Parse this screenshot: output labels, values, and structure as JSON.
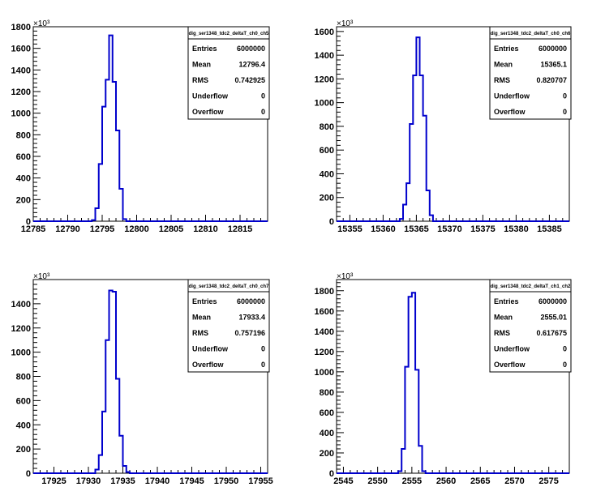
{
  "chart_data": [
    {
      "type": "bar",
      "title": "dig_ser1348_tdc2_deltaT_ch0_ch5",
      "xlim": [
        12785,
        12819
      ],
      "ylim": [
        0,
        1800
      ],
      "y_multiplier": "×10³",
      "x_ticks": [
        12785,
        12790,
        12795,
        12800,
        12805,
        12810,
        12815
      ],
      "y_ticks": [
        0,
        200,
        400,
        600,
        800,
        1000,
        1200,
        1400,
        1600,
        1800
      ],
      "bin_width": 0.5,
      "bins_x": [
        12793.5,
        12794.0,
        12794.5,
        12795.0,
        12795.5,
        12796.0,
        12796.5,
        12797.0,
        12797.5,
        12798.0
      ],
      "bins_y": [
        10,
        120,
        530,
        1060,
        1310,
        1720,
        1290,
        840,
        300,
        20
      ],
      "stats": [
        {
          "label": "Entries",
          "value": "6000000"
        },
        {
          "label": "Mean",
          "value": "12796.4"
        },
        {
          "label": "RMS",
          "value": "0.742925"
        },
        {
          "label": "Underflow",
          "value": "0"
        },
        {
          "label": "Overflow",
          "value": "0"
        }
      ],
      "line_color": "#0000cc"
    },
    {
      "type": "bar",
      "title": "dig_ser1348_tdc2_deltaT_ch0_ch6",
      "xlim": [
        15353,
        15388
      ],
      "ylim": [
        0,
        1600
      ],
      "y_multiplier": "×10³",
      "x_ticks": [
        15355,
        15360,
        15365,
        15370,
        15375,
        15380,
        15385
      ],
      "y_ticks": [
        0,
        200,
        400,
        600,
        800,
        1000,
        1200,
        1400,
        1600
      ],
      "bin_width": 0.5,
      "bins_x": [
        15362.5,
        15363.0,
        15363.5,
        15364.0,
        15364.5,
        15365.0,
        15365.5,
        15366.0,
        15366.5,
        15367.0
      ],
      "bins_y": [
        20,
        140,
        320,
        820,
        1230,
        1550,
        1230,
        890,
        260,
        50
      ],
      "stats": [
        {
          "label": "Entries",
          "value": "6000000"
        },
        {
          "label": "Mean",
          "value": "15365.1"
        },
        {
          "label": "RMS",
          "value": "0.820707"
        },
        {
          "label": "Underflow",
          "value": "0"
        },
        {
          "label": "Overflow",
          "value": "0"
        }
      ],
      "line_color": "#0000cc"
    },
    {
      "type": "bar",
      "title": "dig_ser1348_tdc2_deltaT_ch0_ch7",
      "xlim": [
        17922,
        17956
      ],
      "ylim": [
        0,
        1600
      ],
      "y_multiplier": "×10³",
      "x_ticks": [
        17925,
        17930,
        17935,
        17940,
        17945,
        17950,
        17955
      ],
      "y_ticks": [
        0,
        200,
        400,
        600,
        800,
        1000,
        1200,
        1400
      ],
      "bin_width": 0.5,
      "bins_x": [
        17931.0,
        17931.5,
        17932.0,
        17932.5,
        17933.0,
        17933.5,
        17934.0,
        17934.5,
        17935.0,
        17935.5
      ],
      "bins_y": [
        30,
        150,
        510,
        1100,
        1510,
        1500,
        780,
        310,
        60,
        10
      ],
      "stats": [
        {
          "label": "Entries",
          "value": "6000000"
        },
        {
          "label": "Mean",
          "value": "17933.4"
        },
        {
          "label": "RMS",
          "value": "0.757196"
        },
        {
          "label": "Underflow",
          "value": "0"
        },
        {
          "label": "Overflow",
          "value": "0"
        }
      ],
      "line_color": "#0000cc"
    },
    {
      "type": "bar",
      "title": "dig_ser1348_tdc2_deltaT_ch1_ch2",
      "xlim": [
        2544,
        2578
      ],
      "ylim": [
        0,
        1900
      ],
      "y_multiplier": "×10³",
      "x_ticks": [
        2545,
        2550,
        2555,
        2560,
        2565,
        2570,
        2575
      ],
      "y_ticks": [
        0,
        200,
        400,
        600,
        800,
        1000,
        1200,
        1400,
        1600,
        1800
      ],
      "bin_width": 0.5,
      "bins_x": [
        2553.0,
        2553.5,
        2554.0,
        2554.5,
        2555.0,
        2555.5,
        2556.0,
        2556.5
      ],
      "bins_y": [
        20,
        240,
        1050,
        1740,
        1780,
        1020,
        270,
        20
      ],
      "stats": [
        {
          "label": "Entries",
          "value": "6000000"
        },
        {
          "label": "Mean",
          "value": "2555.01"
        },
        {
          "label": "RMS",
          "value": "0.617675"
        },
        {
          "label": "Underflow",
          "value": "0"
        },
        {
          "label": "Overflow",
          "value": "0"
        }
      ],
      "line_color": "#0000cc"
    }
  ]
}
